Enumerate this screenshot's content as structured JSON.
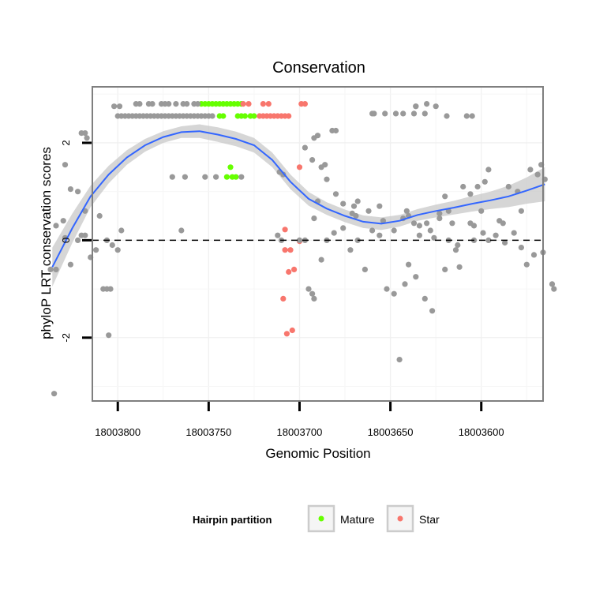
{
  "chart_data": {
    "type": "scatter",
    "title": "Conservation",
    "xlabel": "Genomic Position",
    "ylabel": "phyloP LRT conservation scores",
    "x_reversed": true,
    "xlim": [
      18003814,
      18003566
    ],
    "ylim": [
      -3.3,
      3.15
    ],
    "xticks": [
      18003800,
      18003750,
      18003700,
      18003650,
      18003600
    ],
    "xtick_labels": [
      "18003800",
      "18003750",
      "18003700",
      "18003650",
      "18003600"
    ],
    "yticks": [
      -2,
      0,
      2
    ],
    "ytick_labels": [
      "-2",
      "0",
      "2"
    ],
    "grid": true,
    "reference_line": {
      "y": 0,
      "style": "dashed"
    },
    "legend": {
      "title": "Hairpin partition",
      "position": "bottom",
      "entries": [
        {
          "label": "Mature",
          "color": "#66ff00"
        },
        {
          "label": "Star",
          "color": "#f8766d"
        }
      ]
    },
    "colors": {
      "other": "#999999",
      "smooth_line": "#3366ff",
      "ribbon": "#c8c8c8"
    },
    "series": [
      {
        "name": "Mature",
        "color": "#66ff00",
        "points": [
          [
            18003754,
            2.8
          ],
          [
            18003752,
            2.8
          ],
          [
            18003750,
            2.8
          ],
          [
            18003748,
            2.8
          ],
          [
            18003746,
            2.8
          ],
          [
            18003744,
            2.8
          ],
          [
            18003742,
            2.8
          ],
          [
            18003740,
            2.8
          ],
          [
            18003738,
            2.8
          ],
          [
            18003736,
            2.8
          ],
          [
            18003734,
            2.8
          ],
          [
            18003732,
            2.8
          ],
          [
            18003744,
            2.55
          ],
          [
            18003742,
            2.55
          ],
          [
            18003734,
            2.55
          ],
          [
            18003732,
            2.55
          ],
          [
            18003730,
            2.55
          ],
          [
            18003727,
            2.55
          ],
          [
            18003725,
            2.55
          ],
          [
            18003738,
            1.5
          ],
          [
            18003740,
            1.3
          ],
          [
            18003737,
            1.3
          ],
          [
            18003735,
            1.3
          ]
        ]
      },
      {
        "name": "Star",
        "color": "#f8766d",
        "points": [
          [
            18003731,
            2.8
          ],
          [
            18003728,
            2.8
          ],
          [
            18003720,
            2.8
          ],
          [
            18003717,
            2.8
          ],
          [
            18003699,
            2.8
          ],
          [
            18003697,
            2.8
          ],
          [
            18003722,
            2.55
          ],
          [
            18003720,
            2.55
          ],
          [
            18003718,
            2.55
          ],
          [
            18003716,
            2.55
          ],
          [
            18003714,
            2.55
          ],
          [
            18003712,
            2.55
          ],
          [
            18003710,
            2.55
          ],
          [
            18003708,
            2.55
          ],
          [
            18003706,
            2.55
          ],
          [
            18003700,
            1.5
          ],
          [
            18003708,
            0.22
          ],
          [
            18003700,
            -0.02
          ],
          [
            18003705,
            -0.2
          ],
          [
            18003708,
            -0.2
          ],
          [
            18003703,
            -0.6
          ],
          [
            18003706,
            -0.65
          ],
          [
            18003709,
            -1.2
          ],
          [
            18003704,
            -1.85
          ],
          [
            18003707,
            -1.92
          ]
        ]
      },
      {
        "name": "",
        "color": "#999999",
        "points": [
          [
            18003800,
            2.55
          ],
          [
            18003798,
            2.55
          ],
          [
            18003796,
            2.55
          ],
          [
            18003794,
            2.55
          ],
          [
            18003792,
            2.55
          ],
          [
            18003790,
            2.55
          ],
          [
            18003788,
            2.55
          ],
          [
            18003786,
            2.55
          ],
          [
            18003784,
            2.55
          ],
          [
            18003782,
            2.55
          ],
          [
            18003780,
            2.55
          ],
          [
            18003778,
            2.55
          ],
          [
            18003776,
            2.55
          ],
          [
            18003774,
            2.55
          ],
          [
            18003772,
            2.55
          ],
          [
            18003770,
            2.55
          ],
          [
            18003768,
            2.55
          ],
          [
            18003766,
            2.55
          ],
          [
            18003764,
            2.55
          ],
          [
            18003762,
            2.55
          ],
          [
            18003760,
            2.55
          ],
          [
            18003758,
            2.55
          ],
          [
            18003756,
            2.55
          ],
          [
            18003754,
            2.55
          ],
          [
            18003752,
            2.55
          ],
          [
            18003750,
            2.55
          ],
          [
            18003748,
            2.55
          ],
          [
            18003790,
            2.8
          ],
          [
            18003788,
            2.8
          ],
          [
            18003783,
            2.8
          ],
          [
            18003781,
            2.8
          ],
          [
            18003776,
            2.8
          ],
          [
            18003774,
            2.8
          ],
          [
            18003772,
            2.8
          ],
          [
            18003768,
            2.8
          ],
          [
            18003764,
            2.8
          ],
          [
            18003762,
            2.8
          ],
          [
            18003758,
            2.8
          ],
          [
            18003756,
            2.8
          ],
          [
            18003799,
            2.75
          ],
          [
            18003802,
            2.75
          ],
          [
            18003630,
            2.8
          ],
          [
            18003636,
            2.75
          ],
          [
            18003636,
            2.75
          ],
          [
            18003625,
            2.75
          ],
          [
            18003659,
            2.6
          ],
          [
            18003660,
            2.6
          ],
          [
            18003631,
            2.6
          ],
          [
            18003637,
            2.6
          ],
          [
            18003643,
            2.6
          ],
          [
            18003647,
            2.6
          ],
          [
            18003653,
            2.6
          ],
          [
            18003619,
            2.55
          ],
          [
            18003608,
            2.55
          ],
          [
            18003605,
            2.55
          ],
          [
            18003834,
            -0.6
          ],
          [
            18003837,
            -0.6
          ],
          [
            18003829,
            0.05
          ],
          [
            18003810,
            0.5
          ],
          [
            18003822,
            0.0
          ],
          [
            18003822,
            1.0
          ],
          [
            18003818,
            0.6
          ],
          [
            18003817,
            2.1
          ],
          [
            18003820,
            2.2
          ],
          [
            18003818,
            2.2
          ],
          [
            18003803,
            -0.1
          ],
          [
            18003800,
            -0.2
          ],
          [
            18003806,
            0.0
          ],
          [
            18003806,
            -1.0
          ],
          [
            18003808,
            -1.0
          ],
          [
            18003804,
            -1.0
          ],
          [
            18003805,
            -1.95
          ],
          [
            18003835,
            -3.15
          ],
          [
            18003834,
            0.3
          ],
          [
            18003830,
            0.4
          ],
          [
            18003829,
            1.55
          ],
          [
            18003826,
            1.05
          ],
          [
            18003826,
            -0.5
          ],
          [
            18003820,
            0.1
          ],
          [
            18003818,
            0.1
          ],
          [
            18003815,
            -0.35
          ],
          [
            18003812,
            -0.2
          ],
          [
            18003798,
            0.2
          ],
          [
            18003765,
            0.2
          ],
          [
            18003770,
            1.3
          ],
          [
            18003763,
            1.3
          ],
          [
            18003752,
            1.3
          ],
          [
            18003746,
            1.3
          ],
          [
            18003732,
            1.3
          ],
          [
            18003711,
            1.4
          ],
          [
            18003709,
            1.35
          ],
          [
            18003697,
            1.9
          ],
          [
            18003692,
            2.1
          ],
          [
            18003690,
            2.15
          ],
          [
            18003682,
            2.25
          ],
          [
            18003680,
            2.25
          ],
          [
            18003693,
            1.65
          ],
          [
            18003688,
            1.5
          ],
          [
            18003686,
            1.55
          ],
          [
            18003685,
            1.25
          ],
          [
            18003680,
            0.95
          ],
          [
            18003676,
            0.75
          ],
          [
            18003671,
            0.55
          ],
          [
            18003669,
            0.5
          ],
          [
            18003668,
            0.8
          ],
          [
            18003662,
            0.6
          ],
          [
            18003656,
            0.7
          ],
          [
            18003654,
            0.4
          ],
          [
            18003648,
            0.2
          ],
          [
            18003643,
            0.45
          ],
          [
            18003641,
            0.6
          ],
          [
            18003637,
            0.35
          ],
          [
            18003634,
            0.1
          ],
          [
            18003630,
            0.35
          ],
          [
            18003628,
            0.2
          ],
          [
            18003626,
            0.05
          ],
          [
            18003623,
            0.55
          ],
          [
            18003620,
            0.9
          ],
          [
            18003618,
            0.6
          ],
          [
            18003616,
            0.35
          ],
          [
            18003613,
            -0.1
          ],
          [
            18003610,
            1.1
          ],
          [
            18003606,
            0.95
          ],
          [
            18003602,
            1.1
          ],
          [
            18003598,
            1.2
          ],
          [
            18003596,
            1.45
          ],
          [
            18003590,
            0.4
          ],
          [
            18003588,
            0.35
          ],
          [
            18003585,
            1.1
          ],
          [
            18003580,
            1.0
          ],
          [
            18003578,
            0.6
          ],
          [
            18003573,
            1.45
          ],
          [
            18003569,
            1.35
          ],
          [
            18003567,
            1.55
          ],
          [
            18003565,
            1.25
          ],
          [
            18003700,
            0.0
          ],
          [
            18003697,
            0.0
          ],
          [
            18003692,
            0.45
          ],
          [
            18003688,
            -0.4
          ],
          [
            18003685,
            0.0
          ],
          [
            18003681,
            0.15
          ],
          [
            18003676,
            0.25
          ],
          [
            18003672,
            -0.2
          ],
          [
            18003668,
            0.0
          ],
          [
            18003664,
            -0.6
          ],
          [
            18003660,
            0.2
          ],
          [
            18003656,
            0.1
          ],
          [
            18003652,
            -1.0
          ],
          [
            18003648,
            -1.1
          ],
          [
            18003645,
            -2.45
          ],
          [
            18003642,
            -0.9
          ],
          [
            18003640,
            -0.5
          ],
          [
            18003636,
            -0.75
          ],
          [
            18003634,
            0.3
          ],
          [
            18003631,
            -1.2
          ],
          [
            18003627,
            -1.45
          ],
          [
            18003623,
            0.45
          ],
          [
            18003618,
            0.0
          ],
          [
            18003614,
            -0.2
          ],
          [
            18003612,
            -0.55
          ],
          [
            18003606,
            0.35
          ],
          [
            18003604,
            0.0
          ],
          [
            18003599,
            0.15
          ],
          [
            18003596,
            0.0
          ],
          [
            18003592,
            0.1
          ],
          [
            18003587,
            -0.05
          ],
          [
            18003582,
            0.15
          ],
          [
            18003578,
            -0.15
          ],
          [
            18003575,
            -0.5
          ],
          [
            18003571,
            -0.3
          ],
          [
            18003566,
            -0.25
          ],
          [
            18003561,
            -0.9
          ],
          [
            18003560,
            -1.0
          ],
          [
            18003695,
            -1.0
          ],
          [
            18003693,
            -1.1
          ],
          [
            18003692,
            -1.2
          ],
          [
            18003710,
            0.0
          ],
          [
            18003712,
            0.1
          ],
          [
            18003690,
            0.8
          ],
          [
            18003670,
            0.7
          ],
          [
            18003640,
            0.5
          ],
          [
            18003600,
            0.6
          ],
          [
            18003604,
            0.3
          ],
          [
            18003620,
            -0.6
          ]
        ]
      }
    ],
    "smooth": {
      "x": [
        18003836,
        18003825,
        18003815,
        18003805,
        18003795,
        18003785,
        18003775,
        18003765,
        18003755,
        18003745,
        18003735,
        18003725,
        18003715,
        18003705,
        18003695,
        18003685,
        18003675,
        18003665,
        18003655,
        18003645,
        18003635,
        18003625,
        18003615,
        18003605,
        18003595,
        18003585,
        18003575,
        18003565
      ],
      "y": [
        -0.55,
        0.25,
        0.9,
        1.35,
        1.7,
        1.95,
        2.12,
        2.22,
        2.24,
        2.17,
        2.08,
        1.95,
        1.65,
        1.2,
        0.85,
        0.65,
        0.5,
        0.38,
        0.34,
        0.4,
        0.52,
        0.6,
        0.67,
        0.75,
        0.82,
        0.9,
        1.02,
        1.15
      ],
      "lower": [
        -0.95,
        -0.05,
        0.68,
        1.17,
        1.55,
        1.82,
        2.0,
        2.1,
        2.1,
        2.02,
        1.93,
        1.8,
        1.5,
        1.05,
        0.71,
        0.52,
        0.37,
        0.25,
        0.21,
        0.28,
        0.4,
        0.47,
        0.53,
        0.59,
        0.64,
        0.68,
        0.75,
        0.8
      ],
      "upper": [
        -0.15,
        0.55,
        1.12,
        1.53,
        1.85,
        2.08,
        2.24,
        2.34,
        2.38,
        2.32,
        2.23,
        2.1,
        1.8,
        1.35,
        0.99,
        0.78,
        0.63,
        0.51,
        0.47,
        0.52,
        0.64,
        0.73,
        0.81,
        0.91,
        1.0,
        1.12,
        1.29,
        1.5
      ]
    }
  }
}
